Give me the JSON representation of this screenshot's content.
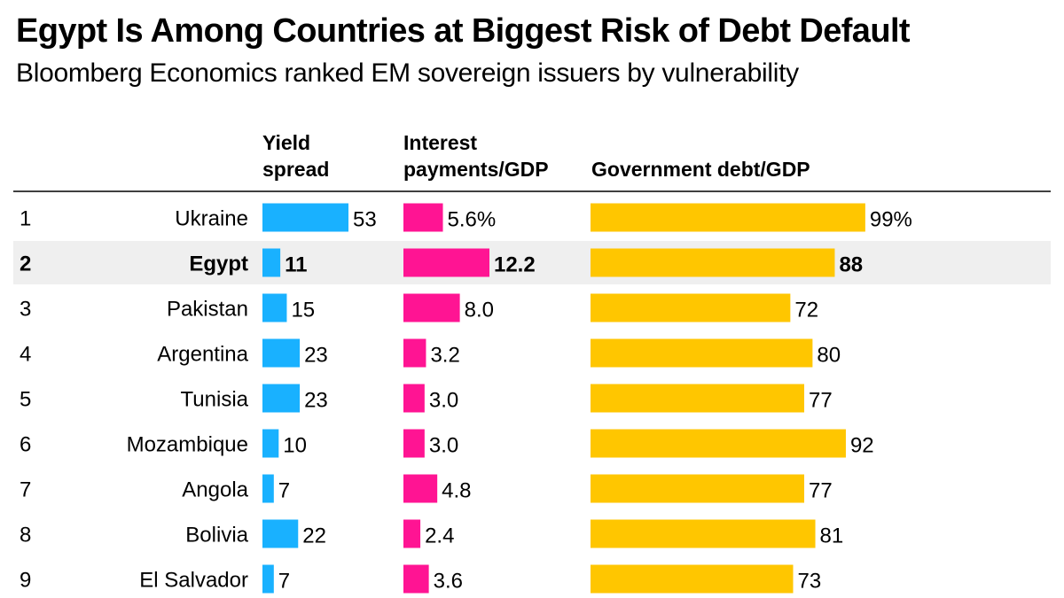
{
  "title": "Egypt Is Among Countries at Biggest Risk of Debt Default",
  "subtitle": "Bloomberg Economics ranked EM sovereign issuers by vulnerability",
  "columns": {
    "yield_spread": [
      "Yield",
      "spread"
    ],
    "interest": [
      "Interest",
      "payments/GDP"
    ],
    "debt": [
      "Government debt/GDP"
    ]
  },
  "colors": {
    "yield_spread": "#19b1ff",
    "interest": "#ff1493",
    "debt": "#ffc600",
    "highlight_row": "#efefef"
  },
  "chart_data": {
    "type": "bar",
    "highlight": "Egypt",
    "ranks": [
      "1",
      "2",
      "3",
      "4",
      "5",
      "6",
      "7",
      "8",
      "9"
    ],
    "categories": [
      "Ukraine",
      "Egypt",
      "Pakistan",
      "Argentina",
      "Tunisia",
      "Mozambique",
      "Angola",
      "Bolivia",
      "El Salvador"
    ],
    "series": [
      {
        "name": "Yield spread",
        "values": [
          53,
          11,
          15,
          23,
          23,
          10,
          7,
          22,
          7
        ],
        "labels": [
          "53",
          "11",
          "15",
          "23",
          "23",
          "10",
          "7",
          "22",
          "7"
        ]
      },
      {
        "name": "Interest payments/GDP",
        "values": [
          5.6,
          12.2,
          8.0,
          3.2,
          3.0,
          3.0,
          4.8,
          2.4,
          3.6
        ],
        "labels": [
          "5.6%",
          "12.2",
          "8.0",
          "3.2",
          "3.0",
          "3.0",
          "4.8",
          "2.4",
          "3.6"
        ]
      },
      {
        "name": "Government debt/GDP",
        "values": [
          99,
          88,
          72,
          80,
          77,
          92,
          77,
          81,
          73
        ],
        "labels": [
          "99%",
          "88",
          "72",
          "80",
          "77",
          "92",
          "77",
          "81",
          "73"
        ]
      }
    ]
  }
}
